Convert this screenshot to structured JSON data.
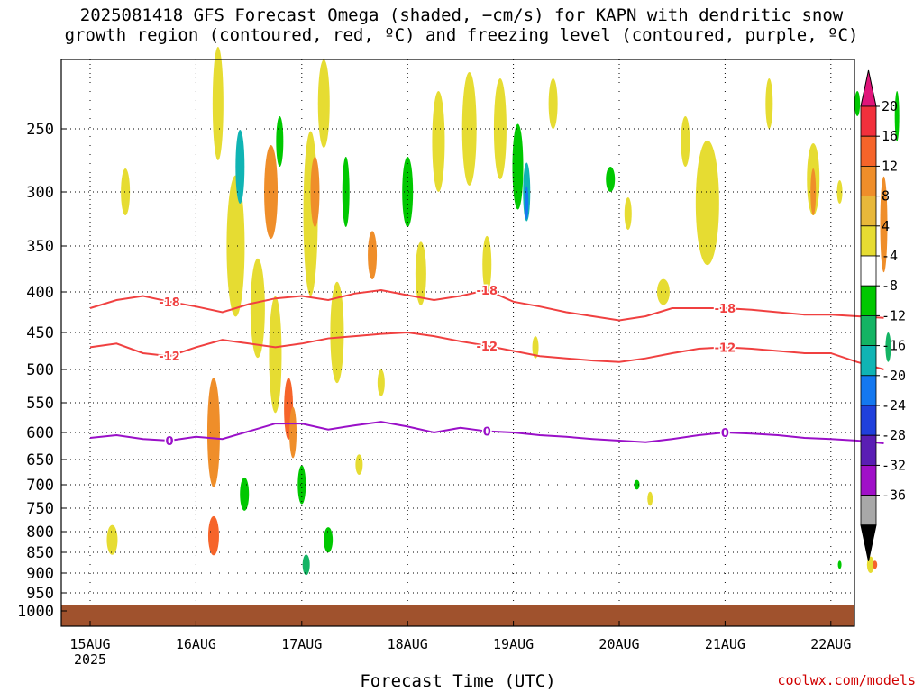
{
  "title_line1": "2025081418 GFS Forecast Omega (shaded, −cm/s) for KAPN with dendritic snow",
  "title_line2": "growth region (contoured, red, ºC) and freezing level (contoured, purple, ºC)",
  "credit": "coolwx.com/models",
  "chart_data": {
    "type": "heatmap",
    "xlabel": "Forecast Time (UTC)",
    "ylabel": "",
    "x_ticks": [
      "15AUG",
      "16AUG",
      "17AUG",
      "18AUG",
      "19AUG",
      "20AUG",
      "21AUG",
      "22AUG"
    ],
    "x_sublabel": "2025",
    "y_ticks": [
      250,
      300,
      350,
      400,
      450,
      500,
      550,
      600,
      650,
      700,
      750,
      800,
      850,
      900,
      950,
      1000
    ],
    "ylim": [
      1000,
      200
    ],
    "xlim_hours": [
      0,
      180
    ],
    "colorbar": {
      "labels": [
        "20",
        "16",
        "12",
        "8",
        "4",
        "-4",
        "-8",
        "-12",
        "-16",
        "-20",
        "-24",
        "-28",
        "-32",
        "-36"
      ],
      "colors": [
        "#e0147a",
        "#f2303c",
        "#f6642a",
        "#ef8e2a",
        "#e8b83a",
        "#e6dc32",
        "#ffffff",
        "#00c800",
        "#14b464",
        "#10b4b4",
        "#1478f0",
        "#2040dc",
        "#5a1eb4",
        "#a010c8",
        "#a8a8a8",
        "#000000"
      ]
    },
    "contours": [
      {
        "label": "-18",
        "color": "#f04040",
        "x": [
          0,
          6,
          12,
          18,
          24,
          30,
          36,
          42,
          48,
          54,
          60,
          66,
          72,
          78,
          84,
          90,
          96,
          102,
          108,
          114,
          120,
          126,
          132,
          138,
          144,
          150,
          156,
          162,
          168,
          174,
          180
        ],
        "y": [
          420,
          410,
          405,
          412,
          418,
          425,
          415,
          408,
          405,
          410,
          402,
          398,
          404,
          410,
          405,
          398,
          412,
          418,
          425,
          430,
          435,
          430,
          420,
          420,
          420,
          422,
          425,
          428,
          428,
          430,
          432
        ]
      },
      {
        "label": "-12",
        "color": "#f04040",
        "x": [
          0,
          6,
          12,
          18,
          24,
          30,
          36,
          42,
          48,
          54,
          60,
          66,
          72,
          78,
          84,
          90,
          96,
          102,
          108,
          114,
          120,
          126,
          132,
          138,
          144,
          150,
          156,
          162,
          168,
          174,
          180
        ],
        "y": [
          470,
          465,
          478,
          482,
          470,
          460,
          465,
          470,
          465,
          458,
          455,
          452,
          450,
          455,
          462,
          468,
          475,
          482,
          485,
          488,
          490,
          485,
          478,
          472,
          470,
          472,
          475,
          478,
          478,
          490,
          500
        ]
      },
      {
        "label": "0",
        "color": "#9a10c8",
        "x": [
          0,
          6,
          12,
          18,
          24,
          30,
          36,
          42,
          48,
          54,
          60,
          66,
          72,
          78,
          84,
          90,
          96,
          102,
          108,
          114,
          120,
          126,
          132,
          138,
          144,
          150,
          156,
          162,
          168,
          174,
          180
        ],
        "y": [
          610,
          605,
          612,
          615,
          608,
          612,
          598,
          585,
          585,
          595,
          588,
          582,
          590,
          600,
          592,
          598,
          600,
          605,
          608,
          612,
          615,
          618,
          612,
          605,
          600,
          602,
          605,
          610,
          612,
          615,
          620
        ]
      }
    ]
  }
}
